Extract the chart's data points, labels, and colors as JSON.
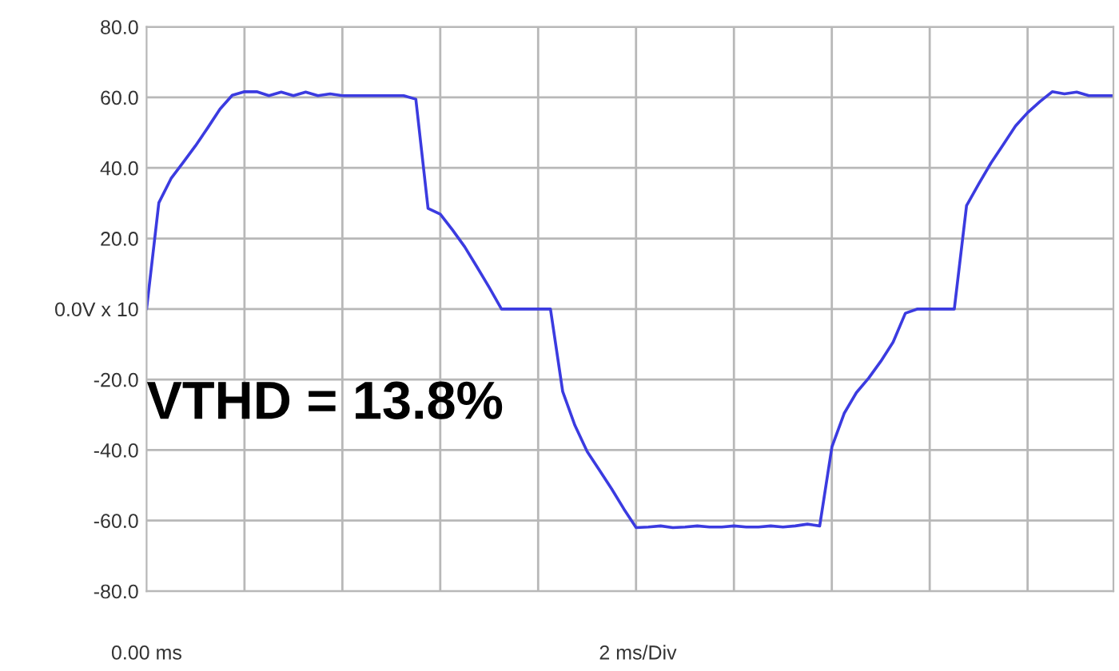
{
  "chart_data": {
    "type": "line",
    "categories": [
      null,
      null,
      null,
      null,
      null,
      null,
      null,
      null,
      null,
      null,
      null,
      null,
      null,
      null,
      null,
      null,
      null,
      null,
      null,
      null,
      null,
      null,
      null,
      null,
      null,
      null,
      null,
      null,
      null,
      null,
      null,
      null,
      null,
      null,
      null,
      null,
      null,
      null,
      null,
      null,
      null,
      null,
      null,
      null,
      null,
      null,
      null,
      null,
      null,
      null,
      null,
      null,
      null,
      null,
      null,
      null,
      null,
      null,
      null,
      null,
      null,
      null,
      null,
      null,
      null,
      null,
      null,
      null,
      null,
      null,
      null,
      null,
      null,
      null,
      null,
      null,
      null,
      null,
      null,
      null
    ],
    "series": [
      {
        "color": "#3b3be0",
        "values": [
          0,
          30.1,
          37,
          41.6,
          46.3,
          51.4,
          56.7,
          60.6,
          61.6,
          61.6,
          60.5,
          61.5,
          60.5,
          61.5,
          60.5,
          61,
          60.5,
          60.5,
          60.5,
          60.5,
          60.5,
          60.5,
          59.5,
          28.5,
          26.9,
          22.4,
          17.6,
          11.9,
          6.1,
          0,
          0,
          0,
          0,
          0,
          -23.4,
          -33,
          -40.4,
          -45.7,
          -51,
          -56.7,
          -62,
          -61.8,
          -61.5,
          -62,
          -61.8,
          -61.5,
          -61.8,
          -61.8,
          -61.5,
          -61.8,
          -61.8,
          -61.5,
          -61.8,
          -61.5,
          -61,
          -61.5,
          -39.1,
          -29.6,
          -23.7,
          -19.6,
          -14.8,
          -9.4,
          -1.2,
          0,
          0,
          0,
          0,
          29.3,
          35.5,
          41.4,
          46.6,
          51.9,
          55.7,
          58.8,
          61.6,
          61,
          61.5,
          60.5,
          60.5,
          60.5
        ]
      }
    ],
    "ylim": [
      -80,
      80
    ],
    "yticks": [
      {
        "value": 80,
        "label": "80.0"
      },
      {
        "value": 60,
        "label": "60.0"
      },
      {
        "value": 40,
        "label": "40.0"
      },
      {
        "value": 20,
        "label": "20.0"
      },
      {
        "value": 0,
        "label": "0.0V x 10"
      },
      {
        "value": -20,
        "label": "-20.0"
      },
      {
        "value": -40,
        "label": "-40.0"
      },
      {
        "value": -60,
        "label": "-60.0"
      },
      {
        "value": -80,
        "label": "-80.0"
      }
    ],
    "annotations": [
      "VTHD = 13.8%",
      "0.00 ms",
      "2 ms/Div"
    ],
    "grid": true
  }
}
